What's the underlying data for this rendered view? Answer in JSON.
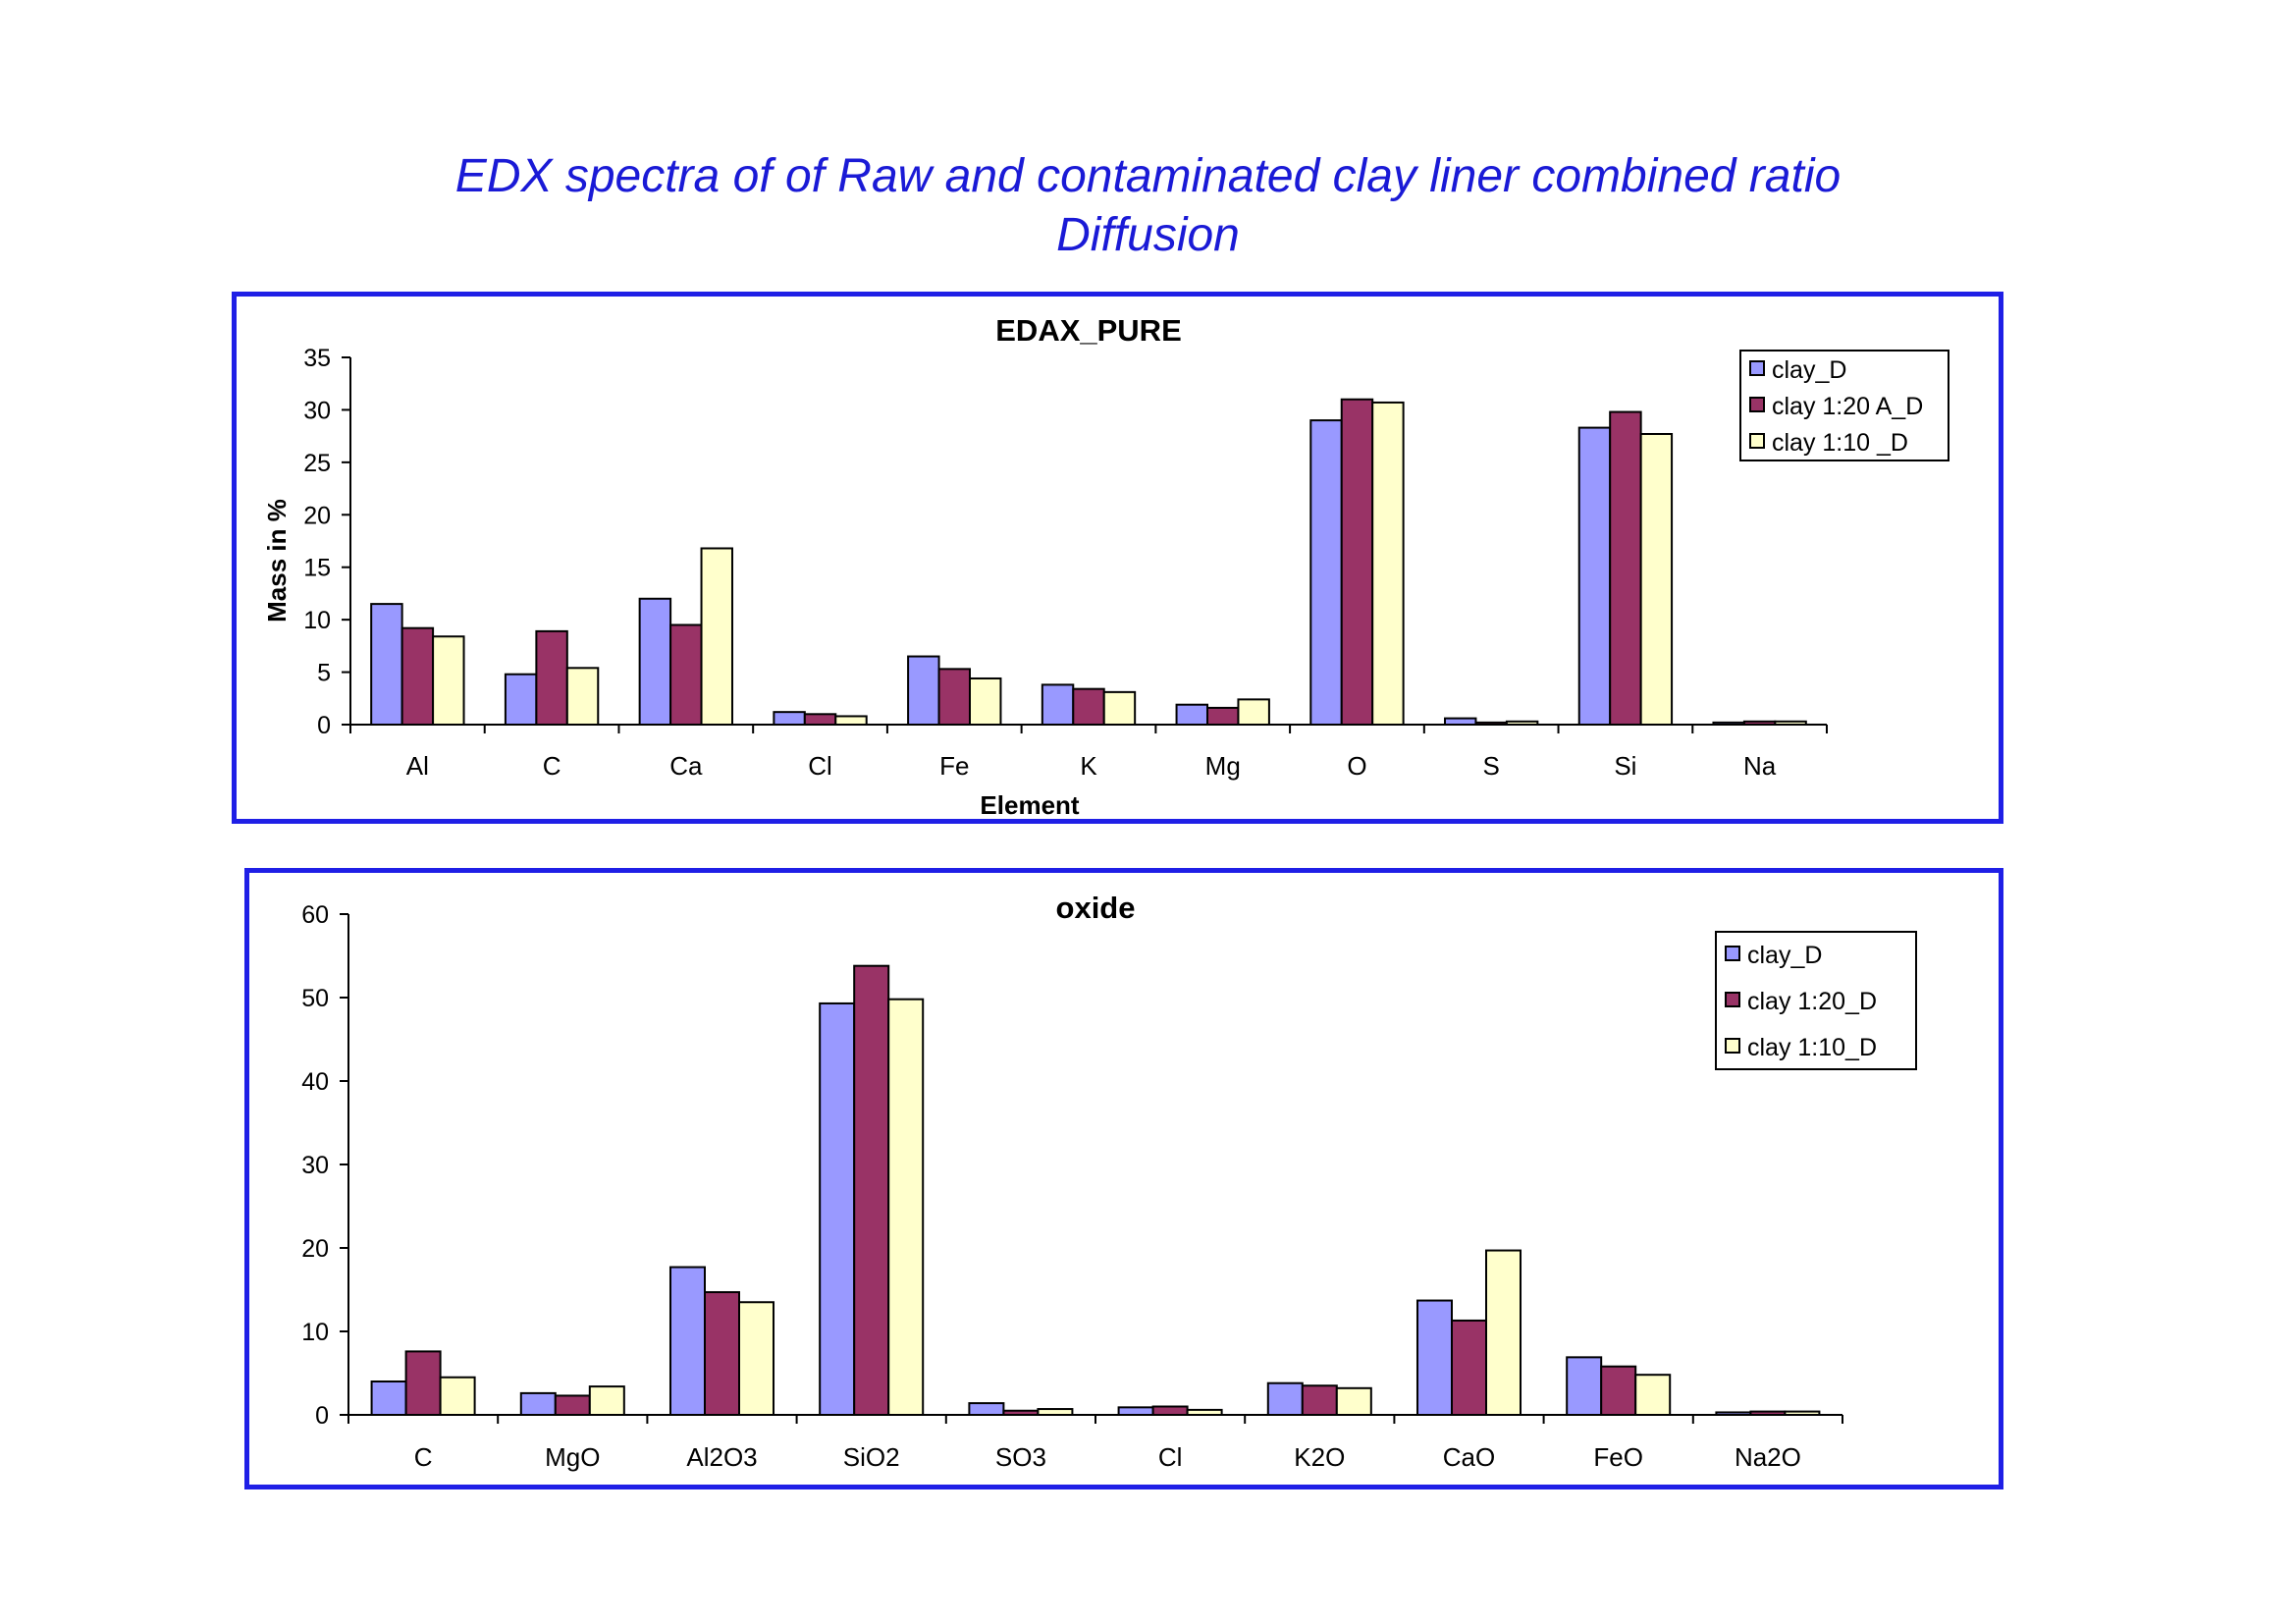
{
  "page": {
    "title_line_1": "EDX spectra of of  Raw and contaminated clay liner  combined ratio",
    "title_line_2": "Diffusion"
  },
  "colors": {
    "series_1": "#9999ff",
    "series_2": "#993366",
    "series_3": "#ffffcc",
    "frame_border": "#1f1fe6",
    "title_text": "#1a1ad6"
  },
  "chart_data": [
    {
      "type": "bar",
      "title": "EDAX_PURE",
      "xlabel": "Element",
      "ylabel": "Mass in %",
      "ylim": [
        0,
        35
      ],
      "yticks": [
        0,
        5,
        10,
        15,
        20,
        25,
        30,
        35
      ],
      "legend_position": "top-right",
      "grid": false,
      "categories": [
        "Al",
        "C",
        "Ca",
        "Cl",
        "Fe",
        "K",
        "Mg",
        "O",
        "S",
        "Si",
        "Na"
      ],
      "series": [
        {
          "name": "clay_D",
          "values": [
            11.5,
            4.8,
            12.0,
            1.2,
            6.5,
            3.8,
            1.9,
            29.0,
            0.6,
            28.3,
            0.2
          ]
        },
        {
          "name": "clay 1:20  A_D",
          "values": [
            9.2,
            8.9,
            9.5,
            1.0,
            5.3,
            3.4,
            1.6,
            31.0,
            0.2,
            29.8,
            0.3
          ]
        },
        {
          "name": "clay 1:10 _D",
          "values": [
            8.4,
            5.4,
            16.8,
            0.8,
            4.4,
            3.1,
            2.4,
            30.7,
            0.3,
            27.7,
            0.3
          ]
        }
      ]
    },
    {
      "type": "bar",
      "title": "oxide",
      "xlabel": "",
      "ylabel": "",
      "ylim": [
        0,
        60
      ],
      "yticks": [
        0,
        10,
        20,
        30,
        40,
        50,
        60
      ],
      "legend_position": "top-right",
      "grid": false,
      "categories": [
        "C",
        "MgO",
        "Al2O3",
        "SiO2",
        "SO3",
        "Cl",
        "K2O",
        "CaO",
        "FeO",
        "Na2O"
      ],
      "series": [
        {
          "name": "clay_D",
          "values": [
            4.0,
            2.6,
            17.7,
            49.3,
            1.4,
            0.9,
            3.8,
            13.7,
            6.9,
            0.3
          ]
        },
        {
          "name": "clay 1:20_D",
          "values": [
            7.6,
            2.3,
            14.7,
            53.8,
            0.5,
            1.0,
            3.5,
            11.3,
            5.8,
            0.4
          ]
        },
        {
          "name": "clay 1:10_D",
          "values": [
            4.5,
            3.4,
            13.5,
            49.8,
            0.7,
            0.6,
            3.2,
            19.7,
            4.8,
            0.4
          ]
        }
      ]
    }
  ]
}
